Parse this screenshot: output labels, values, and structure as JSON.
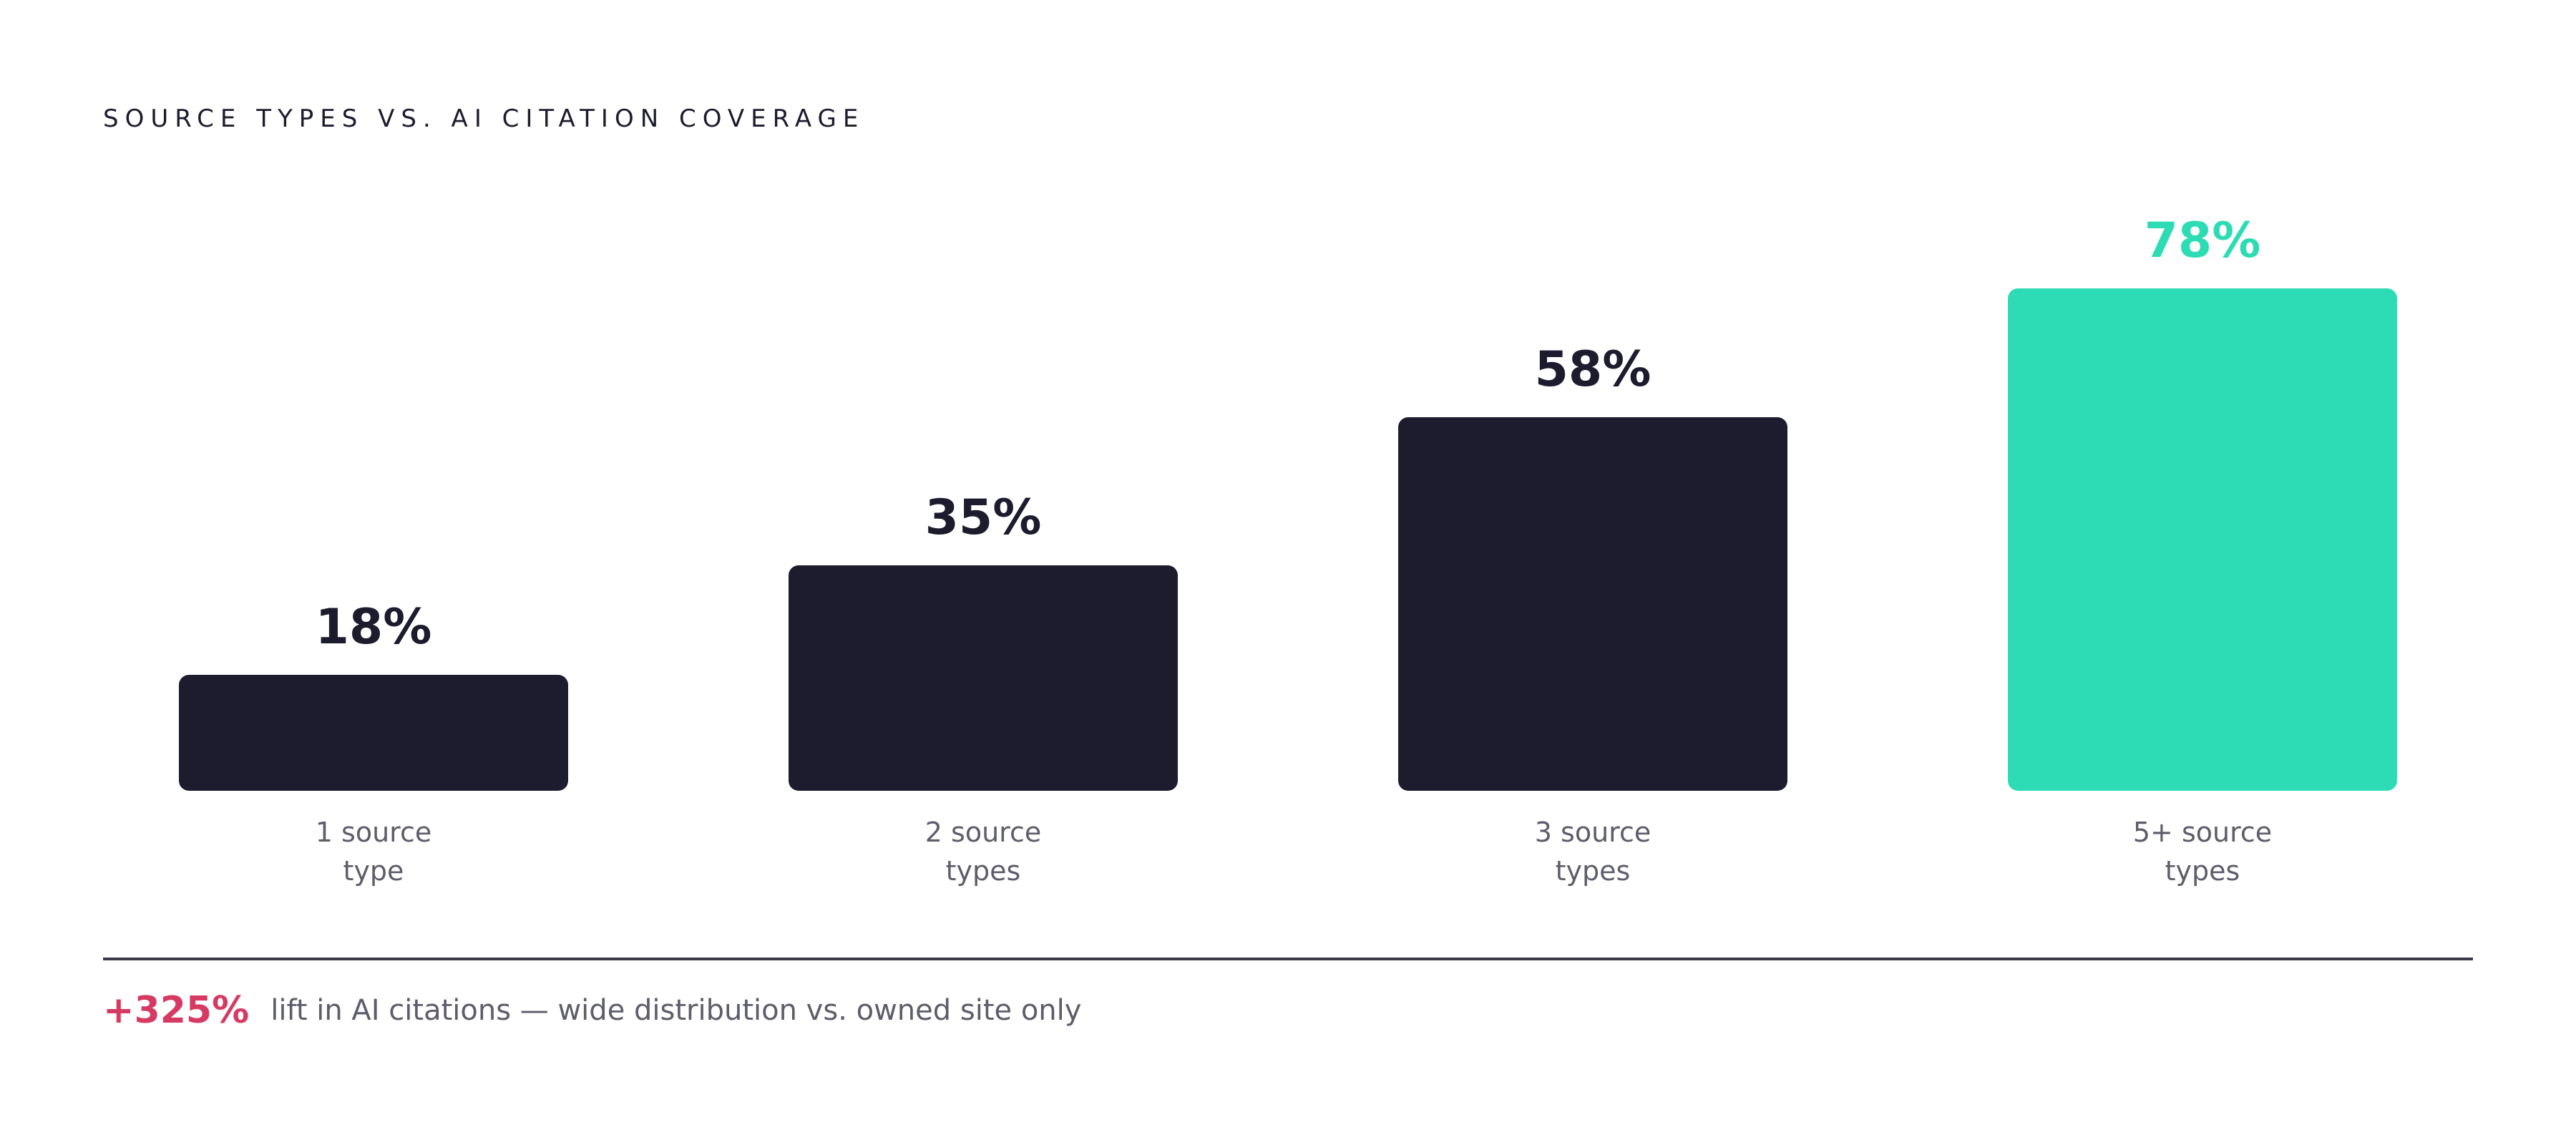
{
  "chart_data": {
    "type": "bar",
    "title": "SOURCE TYPES VS. AI CITATION COVERAGE",
    "categories": [
      [
        "1 source",
        "type"
      ],
      [
        "2 source",
        "types"
      ],
      [
        "3 source",
        "types"
      ],
      [
        "5+ source",
        "types"
      ]
    ],
    "values": [
      18,
      35,
      58,
      78
    ],
    "value_labels": [
      "18%",
      "35%",
      "58%",
      "78%"
    ],
    "unit": "%",
    "ylim": [
      0,
      100
    ],
    "grid": false,
    "colors": {
      "default_bar": "#1c1c2e",
      "highlight_bar": "#2ddcb4",
      "highlight_index": 3,
      "category_label": "#5d5d6b"
    }
  },
  "footer": {
    "stat": "+325%",
    "text": "lift in AI citations — wide distribution vs. owned site only",
    "stat_color": "#d63a63"
  }
}
